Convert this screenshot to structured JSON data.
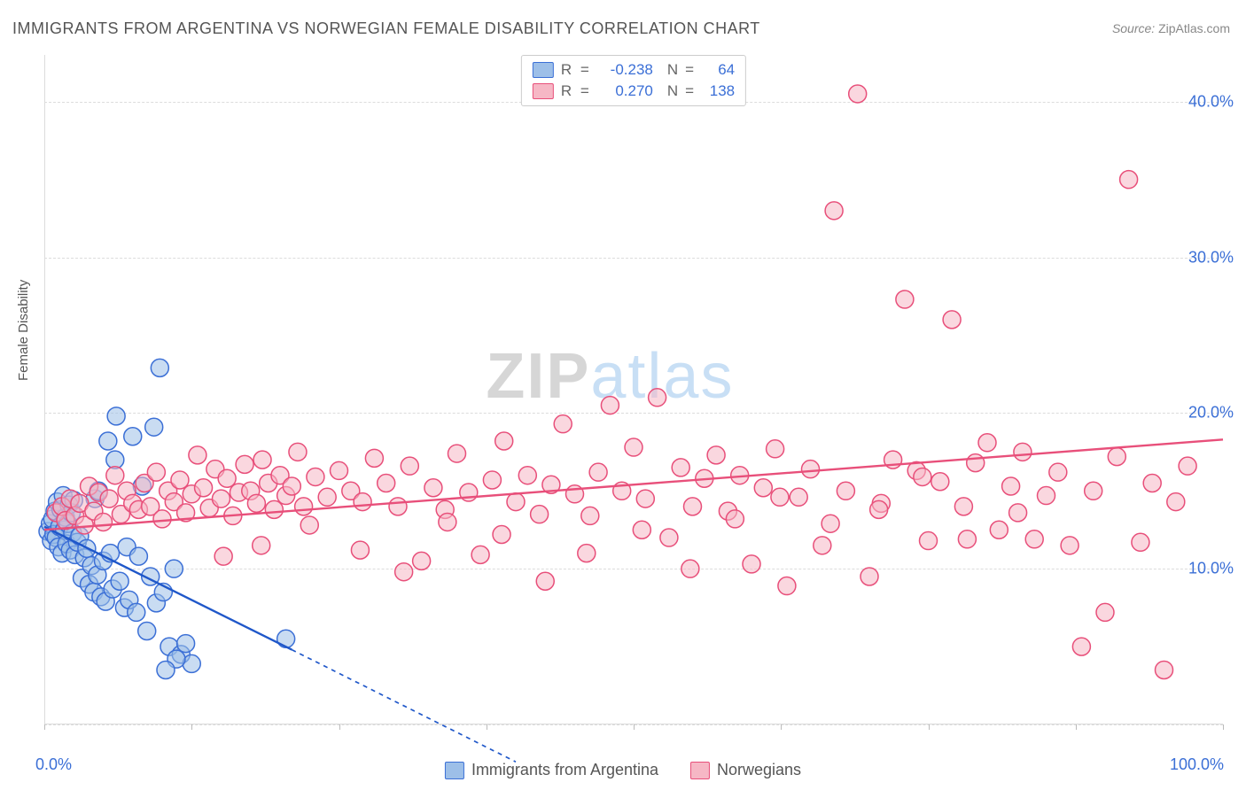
{
  "title": "IMMIGRANTS FROM ARGENTINA VS NORWEGIAN FEMALE DISABILITY CORRELATION CHART",
  "source_label": "Source:",
  "source_name": "ZipAtlas.com",
  "watermark_zip": "ZIP",
  "watermark_atlas": "atlas",
  "y_axis_label": "Female Disability",
  "chart": {
    "type": "scatter",
    "xlim": [
      0,
      100
    ],
    "ylim": [
      0,
      43
    ],
    "x_ticks": [
      0,
      12.5,
      25,
      37.5,
      50,
      62.5,
      75,
      87.5,
      100
    ],
    "x_tick_labels": {
      "0": "0.0%",
      "100": "100.0%"
    },
    "y_grid": [
      0,
      10,
      20,
      30,
      40
    ],
    "y_tick_labels": {
      "10": "10.0%",
      "20": "20.0%",
      "30": "30.0%",
      "40": "40.0%"
    },
    "background_color": "#ffffff",
    "grid_color": "#dcdcdc",
    "marker_radius": 10,
    "series": [
      {
        "name": "argentina",
        "label": "Immigrants from Argentina",
        "fill": "#9dbfe8",
        "fill_opacity": 0.55,
        "stroke": "#3b6fd6",
        "r": -0.238,
        "n": 64,
        "regression": {
          "x1": 0,
          "y1": 12.7,
          "x2": 21,
          "y2": 4.8,
          "solid_end_x": 21,
          "color": "#1f57c9",
          "width": 2.4,
          "dash": "5,5",
          "dash_to_x": 40,
          "dash_to_y": -2.4
        },
        "points": [
          [
            0.3,
            12.4
          ],
          [
            0.5,
            12.9
          ],
          [
            0.6,
            11.8
          ],
          [
            0.7,
            13.2
          ],
          [
            0.8,
            12.2
          ],
          [
            0.9,
            13.7
          ],
          [
            1.0,
            12.0
          ],
          [
            1.1,
            14.3
          ],
          [
            1.2,
            11.4
          ],
          [
            1.3,
            12.7
          ],
          [
            1.4,
            13.8
          ],
          [
            1.5,
            11.0
          ],
          [
            1.6,
            14.7
          ],
          [
            1.7,
            12.5
          ],
          [
            1.8,
            13.3
          ],
          [
            1.9,
            11.6
          ],
          [
            2.0,
            12.9
          ],
          [
            2.1,
            14.1
          ],
          [
            2.2,
            11.2
          ],
          [
            2.3,
            13.6
          ],
          [
            2.4,
            12.3
          ],
          [
            2.5,
            14.4
          ],
          [
            2.6,
            10.9
          ],
          [
            2.8,
            11.7
          ],
          [
            3.0,
            12.1
          ],
          [
            3.2,
            9.4
          ],
          [
            3.4,
            10.7
          ],
          [
            3.6,
            11.3
          ],
          [
            3.8,
            9.0
          ],
          [
            4.0,
            10.2
          ],
          [
            4.2,
            8.5
          ],
          [
            4.3,
            14.5
          ],
          [
            4.5,
            9.6
          ],
          [
            4.6,
            15.0
          ],
          [
            4.8,
            8.2
          ],
          [
            5.0,
            10.5
          ],
          [
            5.2,
            7.9
          ],
          [
            5.4,
            18.2
          ],
          [
            5.6,
            11.0
          ],
          [
            5.8,
            8.7
          ],
          [
            6.0,
            17.0
          ],
          [
            6.1,
            19.8
          ],
          [
            6.4,
            9.2
          ],
          [
            6.8,
            7.5
          ],
          [
            7.0,
            11.4
          ],
          [
            7.2,
            8.0
          ],
          [
            7.5,
            18.5
          ],
          [
            7.8,
            7.2
          ],
          [
            8.0,
            10.8
          ],
          [
            8.3,
            15.3
          ],
          [
            8.7,
            6.0
          ],
          [
            9.0,
            9.5
          ],
          [
            9.3,
            19.1
          ],
          [
            9.5,
            7.8
          ],
          [
            9.8,
            22.9
          ],
          [
            10.1,
            8.5
          ],
          [
            10.6,
            5.0
          ],
          [
            11.0,
            10.0
          ],
          [
            11.6,
            4.5
          ],
          [
            12.0,
            5.2
          ],
          [
            12.5,
            3.9
          ],
          [
            11.2,
            4.2
          ],
          [
            10.3,
            3.5
          ],
          [
            20.5,
            5.5
          ]
        ]
      },
      {
        "name": "norwegians",
        "label": "Norwegians",
        "fill": "#f6b7c5",
        "fill_opacity": 0.55,
        "stroke": "#e84f7a",
        "r": 0.27,
        "n": 138,
        "regression": {
          "x1": 0,
          "y1": 12.5,
          "x2": 100,
          "y2": 18.3,
          "solid_end_x": 100,
          "color": "#e84f7a",
          "width": 2.4
        },
        "points": [
          [
            1.0,
            13.6
          ],
          [
            1.5,
            14.0
          ],
          [
            1.8,
            13.1
          ],
          [
            2.2,
            14.5
          ],
          [
            2.6,
            13.4
          ],
          [
            3.0,
            14.2
          ],
          [
            3.4,
            12.8
          ],
          [
            3.8,
            15.3
          ],
          [
            4.2,
            13.7
          ],
          [
            4.6,
            14.9
          ],
          [
            5.0,
            13.0
          ],
          [
            5.5,
            14.5
          ],
          [
            6.0,
            16.0
          ],
          [
            6.5,
            13.5
          ],
          [
            7.0,
            15.0
          ],
          [
            7.5,
            14.2
          ],
          [
            8.0,
            13.8
          ],
          [
            8.5,
            15.5
          ],
          [
            9.0,
            14.0
          ],
          [
            9.5,
            16.2
          ],
          [
            10.0,
            13.2
          ],
          [
            10.5,
            15.0
          ],
          [
            11.0,
            14.3
          ],
          [
            11.5,
            15.7
          ],
          [
            12.0,
            13.6
          ],
          [
            12.5,
            14.8
          ],
          [
            13.0,
            17.3
          ],
          [
            13.5,
            15.2
          ],
          [
            14.0,
            13.9
          ],
          [
            14.5,
            16.4
          ],
          [
            15.0,
            14.5
          ],
          [
            15.5,
            15.8
          ],
          [
            16.0,
            13.4
          ],
          [
            16.5,
            14.9
          ],
          [
            17.0,
            16.7
          ],
          [
            17.5,
            15.0
          ],
          [
            18.0,
            14.2
          ],
          [
            18.5,
            17.0
          ],
          [
            19.0,
            15.5
          ],
          [
            19.5,
            13.8
          ],
          [
            20.0,
            16.0
          ],
          [
            20.5,
            14.7
          ],
          [
            21.0,
            15.3
          ],
          [
            21.5,
            17.5
          ],
          [
            22.0,
            14.0
          ],
          [
            23.0,
            15.9
          ],
          [
            24.0,
            14.6
          ],
          [
            25.0,
            16.3
          ],
          [
            26.0,
            15.0
          ],
          [
            27.0,
            14.3
          ],
          [
            28.0,
            17.1
          ],
          [
            29.0,
            15.5
          ],
          [
            30.0,
            14.0
          ],
          [
            31.0,
            16.6
          ],
          [
            32.0,
            10.5
          ],
          [
            33.0,
            15.2
          ],
          [
            34.0,
            13.8
          ],
          [
            35.0,
            17.4
          ],
          [
            36.0,
            14.9
          ],
          [
            37.0,
            10.9
          ],
          [
            38.0,
            15.7
          ],
          [
            39.0,
            18.2
          ],
          [
            40.0,
            14.3
          ],
          [
            41.0,
            16.0
          ],
          [
            42.0,
            13.5
          ],
          [
            43.0,
            15.4
          ],
          [
            44.0,
            19.3
          ],
          [
            45.0,
            14.8
          ],
          [
            46.0,
            11.0
          ],
          [
            47.0,
            16.2
          ],
          [
            48.0,
            20.5
          ],
          [
            49.0,
            15.0
          ],
          [
            50.0,
            17.8
          ],
          [
            51.0,
            14.5
          ],
          [
            52.0,
            21.0
          ],
          [
            53.0,
            12.0
          ],
          [
            54.0,
            16.5
          ],
          [
            55.0,
            14.0
          ],
          [
            56.0,
            15.8
          ],
          [
            57.0,
            17.3
          ],
          [
            58.0,
            13.7
          ],
          [
            59.0,
            16.0
          ],
          [
            60.0,
            10.3
          ],
          [
            61.0,
            15.2
          ],
          [
            62.0,
            17.7
          ],
          [
            63.0,
            8.9
          ],
          [
            64.0,
            14.6
          ],
          [
            65.0,
            16.4
          ],
          [
            66.0,
            11.5
          ],
          [
            67.0,
            33.0
          ],
          [
            68.0,
            15.0
          ],
          [
            69.0,
            40.5
          ],
          [
            70.0,
            9.5
          ],
          [
            71.0,
            14.2
          ],
          [
            72.0,
            17.0
          ],
          [
            73.0,
            27.3
          ],
          [
            74.0,
            16.3
          ],
          [
            75.0,
            11.8
          ],
          [
            76.0,
            15.6
          ],
          [
            77.0,
            26.0
          ],
          [
            78.0,
            14.0
          ],
          [
            79.0,
            16.8
          ],
          [
            80.0,
            18.1
          ],
          [
            81.0,
            12.5
          ],
          [
            82.0,
            15.3
          ],
          [
            83.0,
            17.5
          ],
          [
            84.0,
            11.9
          ],
          [
            85.0,
            14.7
          ],
          [
            86.0,
            16.2
          ],
          [
            87.0,
            11.5
          ],
          [
            88.0,
            5.0
          ],
          [
            89.0,
            15.0
          ],
          [
            90.0,
            7.2
          ],
          [
            91.0,
            17.2
          ],
          [
            92.0,
            35.0
          ],
          [
            93.0,
            11.7
          ],
          [
            94.0,
            15.5
          ],
          [
            95.0,
            3.5
          ],
          [
            96.0,
            14.3
          ],
          [
            97.0,
            16.6
          ],
          [
            15.2,
            10.8
          ],
          [
            18.4,
            11.5
          ],
          [
            22.5,
            12.8
          ],
          [
            26.8,
            11.2
          ],
          [
            30.5,
            9.8
          ],
          [
            34.2,
            13.0
          ],
          [
            38.8,
            12.2
          ],
          [
            42.5,
            9.2
          ],
          [
            46.3,
            13.4
          ],
          [
            50.7,
            12.5
          ],
          [
            54.8,
            10.0
          ],
          [
            58.6,
            13.2
          ],
          [
            62.4,
            14.6
          ],
          [
            66.7,
            12.9
          ],
          [
            70.8,
            13.8
          ],
          [
            74.5,
            15.9
          ],
          [
            78.3,
            11.9
          ],
          [
            82.6,
            13.6
          ]
        ]
      }
    ]
  },
  "legend_bottom_label_1": "Immigrants from Argentina",
  "legend_bottom_label_2": "Norwegians"
}
